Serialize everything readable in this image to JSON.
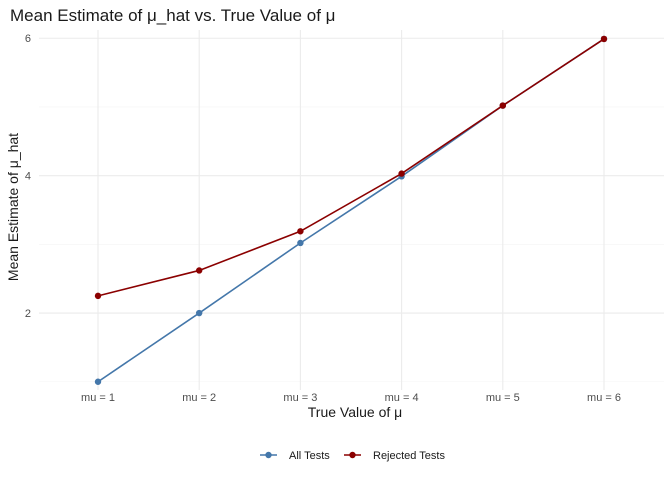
{
  "chart_data": {
    "type": "line",
    "title": "Mean Estimate of μ_hat vs. True Value of μ",
    "xlabel": "True Value of μ",
    "ylabel": "Mean Estimate of μ_hat",
    "categories": [
      "mu = 1",
      "mu = 2",
      "mu = 3",
      "mu = 4",
      "mu = 5",
      "mu = 6"
    ],
    "ylim": [
      0.88,
      6.12
    ],
    "yticks": [
      2,
      4,
      6
    ],
    "grid": true,
    "legend_position": "bottom",
    "series": [
      {
        "name": "All Tests",
        "color": "#4477aa",
        "values": [
          1.0,
          2.0,
          3.02,
          3.99,
          5.02,
          5.99
        ]
      },
      {
        "name": "Rejected Tests",
        "color": "#8b0000",
        "values": [
          2.25,
          2.62,
          3.19,
          4.03,
          5.02,
          5.99
        ]
      }
    ]
  }
}
